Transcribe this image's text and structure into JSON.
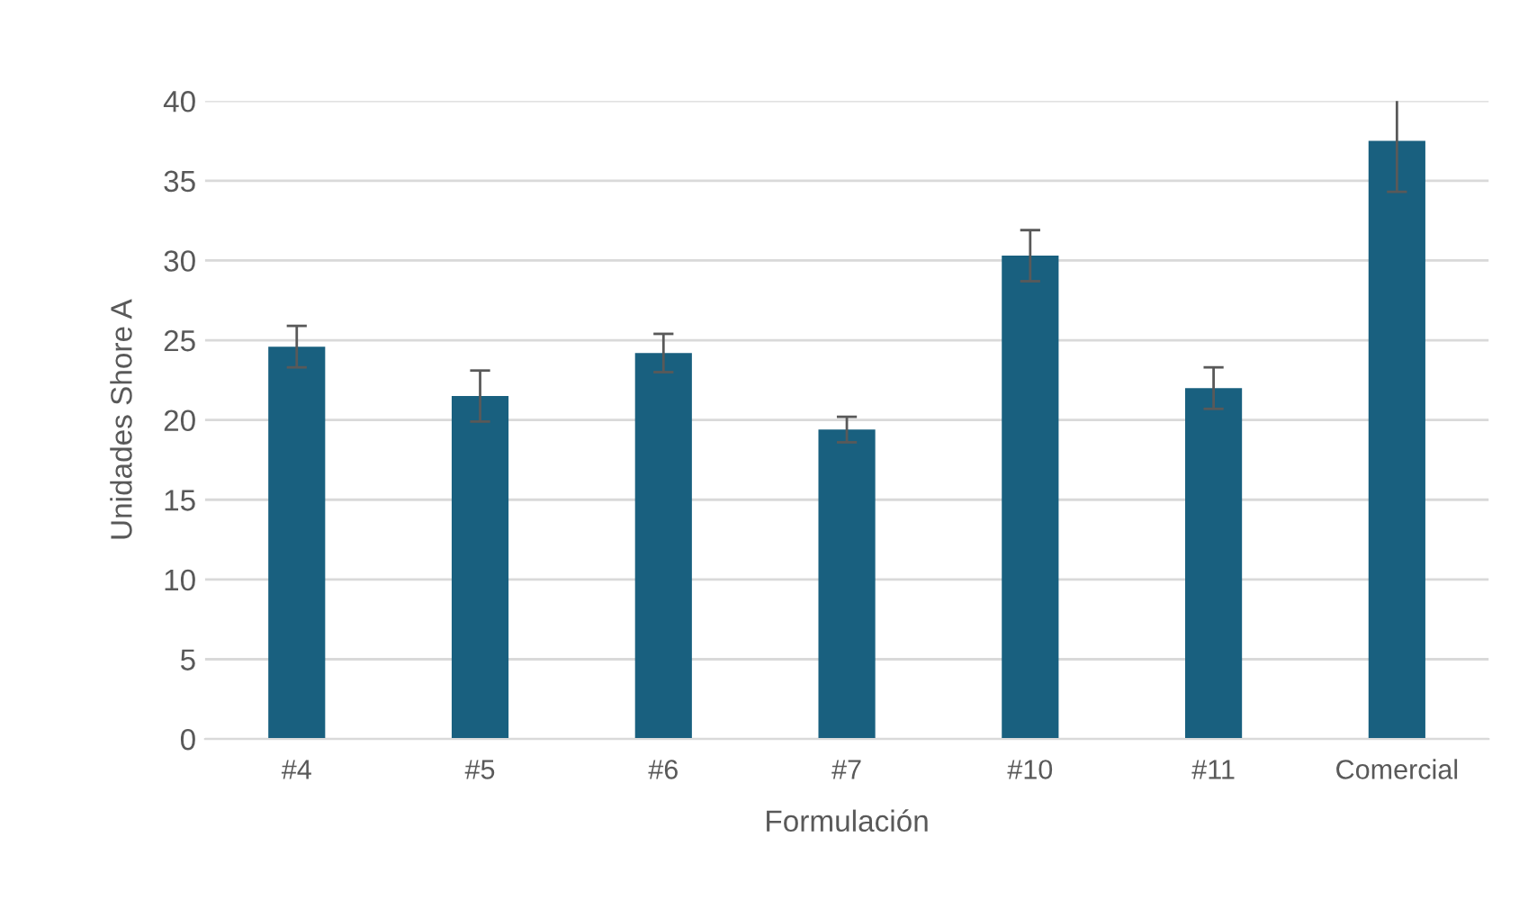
{
  "chart_data": {
    "type": "bar",
    "xlabel": "Formulación",
    "ylabel": "Unidades Shore A",
    "categories": [
      "#4",
      "#5",
      "#6",
      "#7",
      "#10",
      "#11",
      "Comercial"
    ],
    "values": [
      24.6,
      21.5,
      24.2,
      19.4,
      30.3,
      22.0,
      37.5
    ],
    "errors": [
      1.3,
      1.6,
      1.2,
      0.8,
      1.6,
      1.3,
      3.2
    ],
    "color": "#19607f",
    "ylim": [
      0,
      40
    ],
    "yticks": [
      0,
      5,
      10,
      15,
      20,
      25,
      30,
      35,
      40
    ],
    "grid": "y"
  }
}
